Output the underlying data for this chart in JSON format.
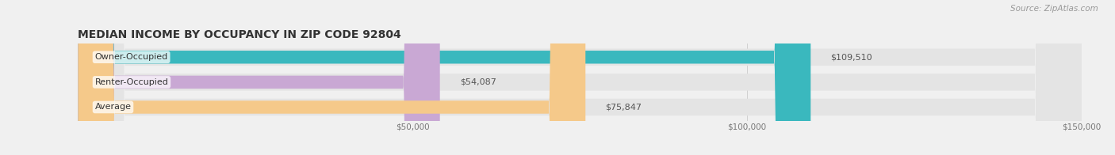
{
  "title": "MEDIAN INCOME BY OCCUPANCY IN ZIP CODE 92804",
  "source": "Source: ZipAtlas.com",
  "categories": [
    "Owner-Occupied",
    "Renter-Occupied",
    "Average"
  ],
  "values": [
    109510,
    54087,
    75847
  ],
  "bar_colors": [
    "#3ab8be",
    "#c9a8d4",
    "#f5c98a"
  ],
  "background_color": "#f0f0f0",
  "bar_bg_color": "#e4e4e4",
  "xlim": [
    0,
    150000
  ],
  "xticks": [
    0,
    50000,
    100000,
    150000
  ],
  "xtick_labels": [
    "",
    "$50,000",
    "$100,000",
    "$150,000"
  ],
  "value_labels": [
    "$109,510",
    "$54,087",
    "$75,847"
  ],
  "title_fontsize": 10,
  "label_fontsize": 8,
  "tick_fontsize": 7.5,
  "source_fontsize": 7.5
}
